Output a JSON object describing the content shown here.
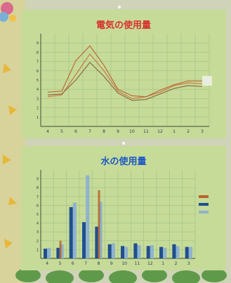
{
  "chart_data": [
    {
      "type": "line",
      "title": "電気の使用量",
      "categories": [
        "4",
        "5",
        "6",
        "7",
        "8",
        "9",
        "10",
        "11",
        "12",
        "1",
        "2",
        "3"
      ],
      "ylim": [
        0,
        10
      ],
      "yticks": [
        "1",
        "2",
        "3",
        "4",
        "5",
        "6",
        "7",
        "8",
        "9"
      ],
      "grid": true,
      "series": [
        {
          "color": "#c97a45",
          "values": [
            3.2,
            3.4,
            5.6,
            7.8,
            6.0,
            3.8,
            3.0,
            3.2,
            3.7,
            4.4,
            4.7,
            4.6
          ]
        },
        {
          "color": "#b86a3a",
          "values": [
            3.7,
            3.8,
            7.1,
            8.7,
            6.6,
            4.0,
            3.3,
            3.2,
            3.9,
            4.5,
            4.9,
            4.9
          ]
        },
        {
          "color": "#8f6a45",
          "values": [
            3.4,
            3.5,
            5.0,
            6.9,
            5.4,
            3.6,
            2.8,
            2.9,
            3.5,
            4.1,
            4.4,
            4.3
          ]
        }
      ]
    },
    {
      "type": "bar",
      "title": "水の使用量",
      "categories": [
        "4",
        "5",
        "6",
        "7",
        "8",
        "9",
        "10",
        "11",
        "12",
        "1",
        "2",
        "3"
      ],
      "ylim": [
        0,
        10
      ],
      "yticks": [
        "1",
        "2",
        "3",
        "4",
        "5",
        "6",
        "7",
        "8",
        "9"
      ],
      "grid": true,
      "legend_position": "right",
      "series": [
        {
          "color": "#1f4f8f",
          "values": [
            1.1,
            1.2,
            5.8,
            4.1,
            3.6,
            1.6,
            1.4,
            1.7,
            1.4,
            1.3,
            1.6,
            1.3
          ]
        },
        {
          "color": "#8fb3cc",
          "values": [
            1.2,
            1.6,
            6.3,
            9.4,
            6.4,
            1.7,
            1.3,
            1.5,
            1.5,
            1.2,
            1.4,
            1.3
          ]
        }
      ],
      "highlights": [
        {
          "category": "5",
          "value": 2.0,
          "color": "#b8642a"
        },
        {
          "category": "8",
          "value": 7.7,
          "color": "#b8642a"
        }
      ]
    }
  ],
  "palette": {
    "board": "#d9dcc2",
    "poster": "#c6db98",
    "grid": "#9fbf86",
    "title_red": "#d8322e",
    "title_blue": "#1f58c4",
    "axis_text": "#2a3b55"
  }
}
